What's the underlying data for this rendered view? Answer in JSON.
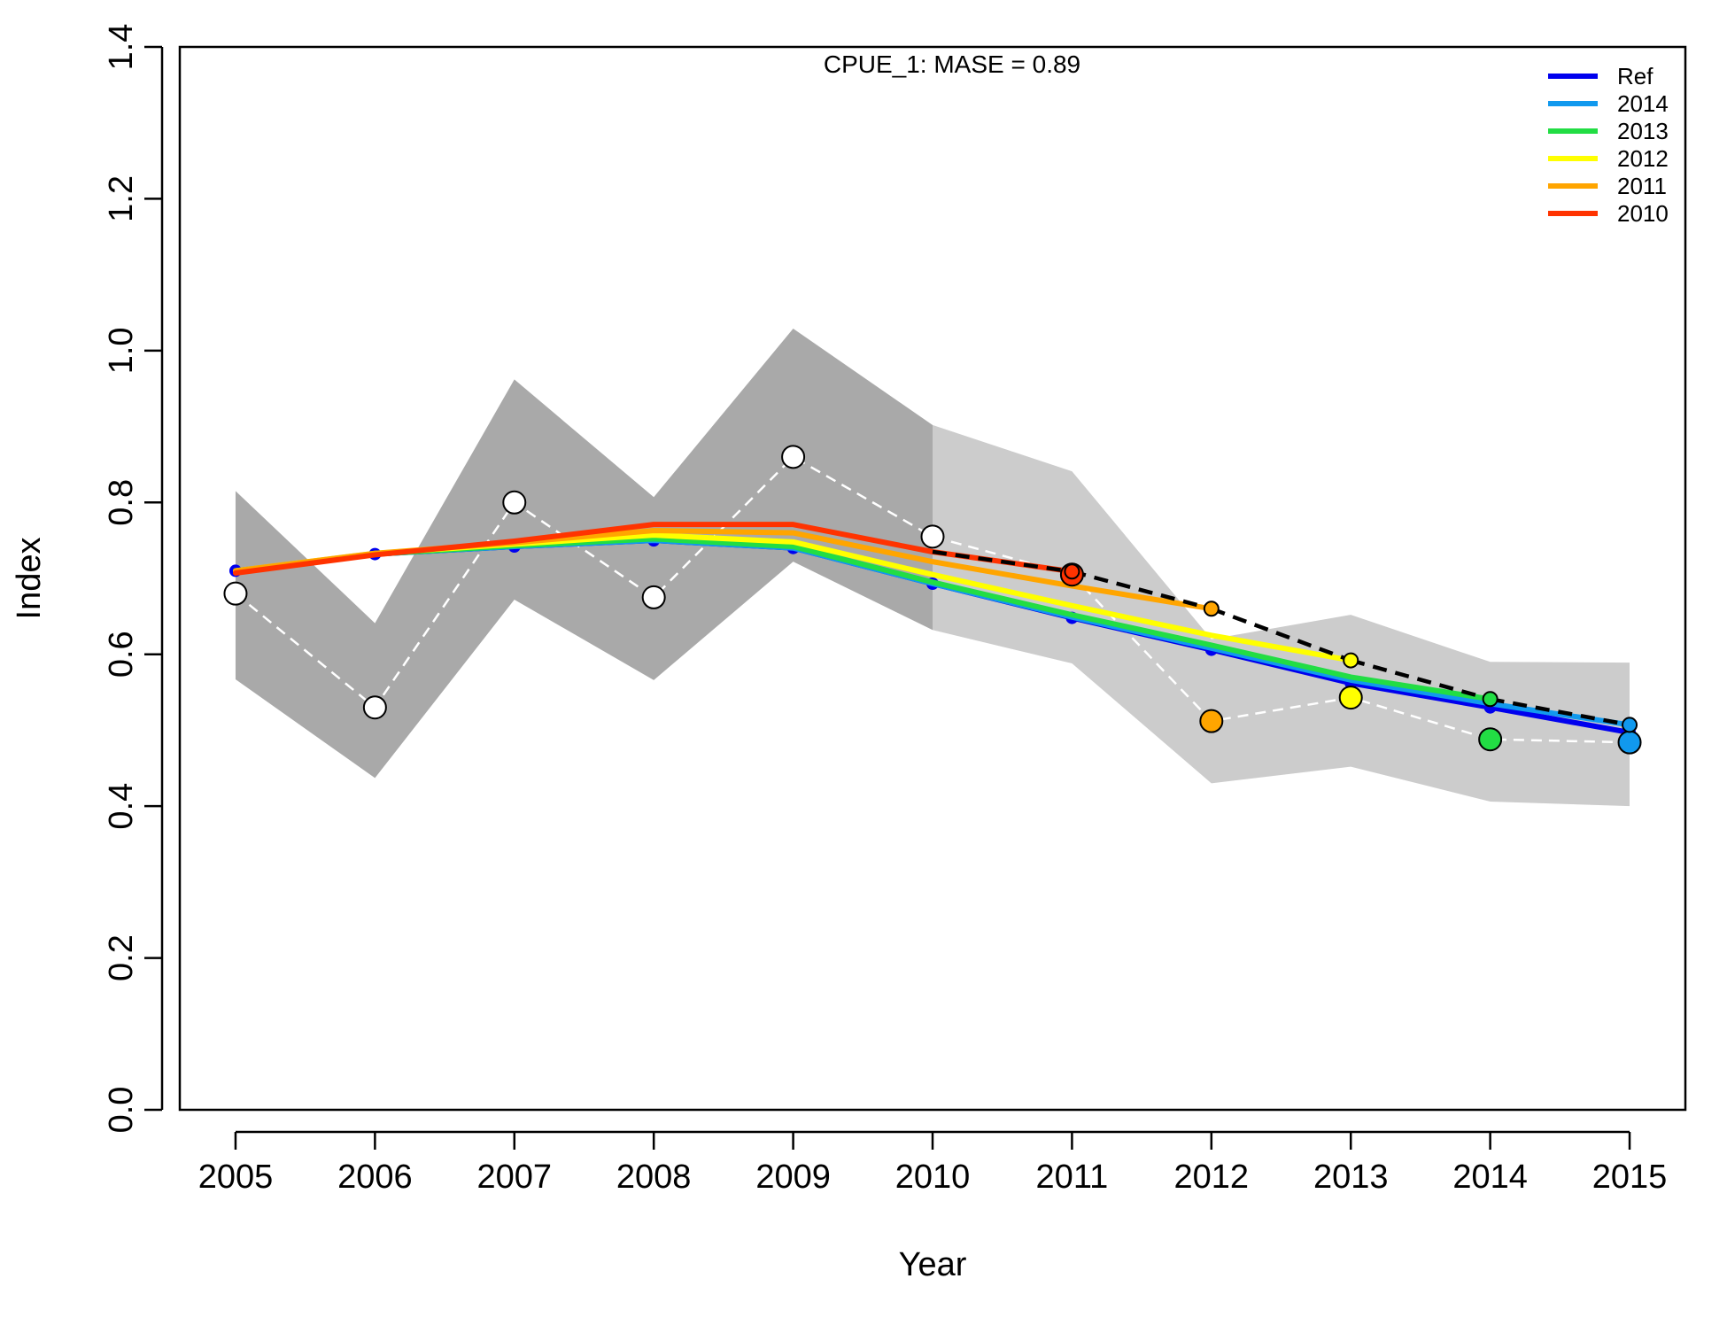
{
  "chart_data": {
    "type": "line",
    "title": "CPUE_1: MASE = 0.89",
    "xlabel": "Year",
    "ylabel": "Index",
    "xlim": [
      2004.6,
      2015.4
    ],
    "ylim": [
      0.0,
      1.4
    ],
    "x_ticks": [
      2005,
      2006,
      2007,
      2008,
      2009,
      2010,
      2011,
      2012,
      2013,
      2014,
      2015
    ],
    "y_ticks": [
      0.0,
      0.2,
      0.4,
      0.6,
      0.8,
      1.0,
      1.2,
      1.4
    ],
    "y_tick_labels": [
      "0.0",
      "0.2",
      "0.4",
      "0.6",
      "0.8",
      "1.0",
      "1.2",
      "1.4"
    ],
    "grid": false,
    "legend_position": "top-right",
    "observed": {
      "x": [
        2005,
        2006,
        2007,
        2008,
        2009,
        2010,
        2011,
        2012,
        2013,
        2014,
        2015
      ],
      "y": [
        0.68,
        0.53,
        0.8,
        0.675,
        0.86,
        0.755,
        0.705,
        0.512,
        0.543,
        0.488,
        0.484
      ],
      "point_colors": [
        "#ffffff",
        "#ffffff",
        "#ffffff",
        "#ffffff",
        "#ffffff",
        "#ffffff",
        "#ff3300",
        "#ffa500",
        "#ffff00",
        "#22dd44",
        "#1199ee"
      ]
    },
    "ci_band_fit": {
      "color": "#a9a9a9",
      "x": [
        2005,
        2006,
        2007,
        2008,
        2009,
        2010
      ],
      "lower": [
        0.567,
        0.437,
        0.672,
        0.566,
        0.722,
        0.632
      ],
      "upper": [
        0.815,
        0.641,
        0.962,
        0.807,
        1.029,
        0.902
      ]
    },
    "ci_band_forecast": {
      "color": "#cccccc",
      "x": [
        2010,
        2011,
        2012,
        2013,
        2014,
        2015
      ],
      "lower": [
        0.632,
        0.588,
        0.43,
        0.452,
        0.406,
        0.4
      ],
      "upper": [
        0.902,
        0.841,
        0.62,
        0.652,
        0.59,
        0.589
      ]
    },
    "series": [
      {
        "name": "Ref",
        "color": "#0000ee",
        "x": [
          2005,
          2006,
          2007,
          2008,
          2009,
          2010,
          2011,
          2012,
          2013,
          2014,
          2015
        ],
        "y": [
          0.71,
          0.732,
          0.742,
          0.75,
          0.74,
          0.693,
          0.648,
          0.606,
          0.562,
          0.53,
          0.497
        ]
      },
      {
        "name": "2014",
        "color": "#1199ee",
        "x": [
          2005,
          2006,
          2007,
          2008,
          2009,
          2010,
          2011,
          2012,
          2013,
          2014,
          2015
        ],
        "y": [
          0.71,
          0.732,
          0.742,
          0.75,
          0.74,
          0.693,
          0.649,
          0.608,
          0.566,
          0.535,
          0.507
        ]
      },
      {
        "name": "2013",
        "color": "#22dd44",
        "x": [
          2005,
          2006,
          2007,
          2008,
          2009,
          2010,
          2011,
          2012,
          2013,
          2014
        ],
        "y": [
          0.71,
          0.732,
          0.743,
          0.752,
          0.742,
          0.695,
          0.652,
          0.612,
          0.57,
          0.541
        ]
      },
      {
        "name": "2012",
        "color": "#ffff00",
        "x": [
          2005,
          2006,
          2007,
          2008,
          2009,
          2010,
          2011,
          2012,
          2013
        ],
        "y": [
          0.71,
          0.733,
          0.745,
          0.757,
          0.748,
          0.705,
          0.664,
          0.625,
          0.592
        ]
      },
      {
        "name": "2011",
        "color": "#ffa500",
        "x": [
          2005,
          2006,
          2007,
          2008,
          2009,
          2010,
          2011,
          2012
        ],
        "y": [
          0.71,
          0.733,
          0.747,
          0.763,
          0.76,
          0.722,
          0.69,
          0.66
        ]
      },
      {
        "name": "2010",
        "color": "#ff3300",
        "x": [
          2005,
          2006,
          2007,
          2008,
          2009,
          2010,
          2011
        ],
        "y": [
          0.707,
          0.731,
          0.749,
          0.771,
          0.771,
          0.735,
          0.709
        ]
      }
    ]
  }
}
